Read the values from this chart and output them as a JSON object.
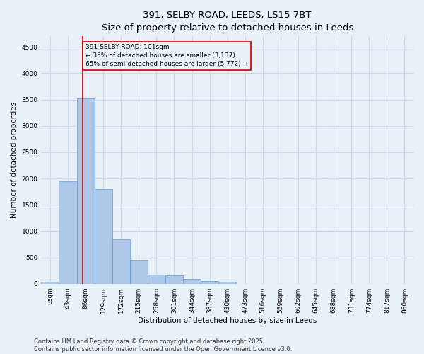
{
  "title_line1": "391, SELBY ROAD, LEEDS, LS15 7BT",
  "title_line2": "Size of property relative to detached houses in Leeds",
  "xlabel": "Distribution of detached houses by size in Leeds",
  "ylabel": "Number of detached properties",
  "bar_labels": [
    "0sqm",
    "43sqm",
    "86sqm",
    "129sqm",
    "172sqm",
    "215sqm",
    "258sqm",
    "301sqm",
    "344sqm",
    "387sqm",
    "430sqm",
    "473sqm",
    "516sqm",
    "559sqm",
    "602sqm",
    "645sqm",
    "688sqm",
    "731sqm",
    "774sqm",
    "817sqm",
    "860sqm"
  ],
  "bar_values": [
    30,
    1940,
    3520,
    1800,
    850,
    450,
    165,
    155,
    90,
    50,
    30,
    0,
    0,
    0,
    0,
    0,
    0,
    0,
    0,
    0,
    0
  ],
  "bar_color": "#aec6e8",
  "bar_edge_color": "#5a9fd4",
  "vline_x": 2.35,
  "vline_color": "#cc0000",
  "annotation_text": "391 SELBY ROAD: 101sqm\n← 35% of detached houses are smaller (3,137)\n65% of semi-detached houses are larger (5,772) →",
  "annotation_box_color": "#cc0000",
  "ylim": [
    0,
    4700
  ],
  "yticks": [
    0,
    500,
    1000,
    1500,
    2000,
    2500,
    3000,
    3500,
    4000,
    4500
  ],
  "grid_color": "#d0d8e8",
  "background_color": "#e8f0f8",
  "footer_text": "Contains HM Land Registry data © Crown copyright and database right 2025.\nContains public sector information licensed under the Open Government Licence v3.0.",
  "title_fontsize": 9.5,
  "axis_label_fontsize": 7.5,
  "tick_fontsize": 6.5,
  "footer_fontsize": 6,
  "annot_fontsize": 6.5
}
